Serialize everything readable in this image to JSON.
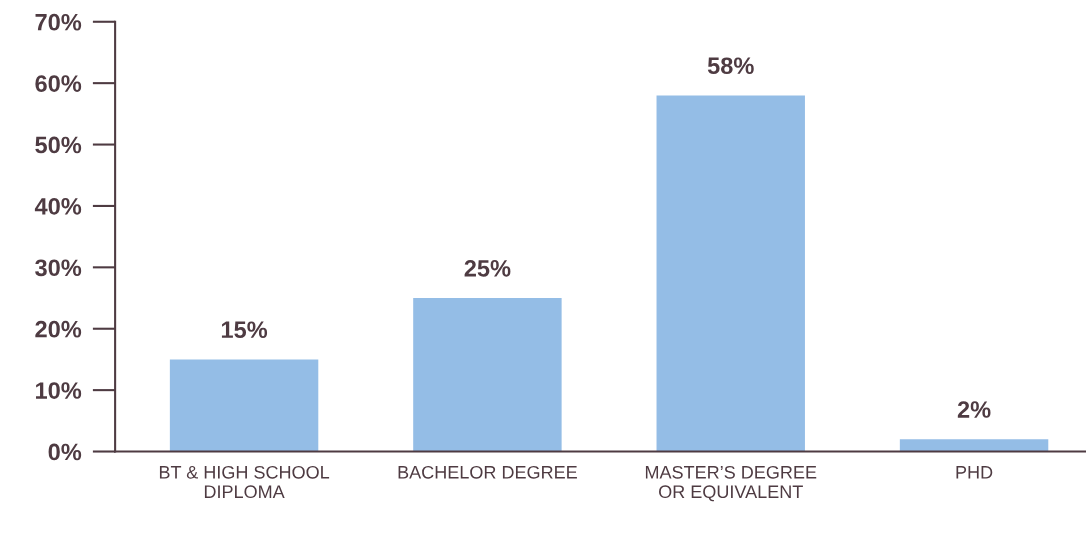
{
  "chart_data": {
    "type": "bar",
    "categories": [
      "BT & HIGH SCHOOL\nDIPLOMA",
      "BACHELOR DEGREE",
      "MASTER’S DEGREE\nOR EQUIVALENT",
      "PHD"
    ],
    "values": [
      15,
      25,
      58,
      2
    ],
    "value_labels": [
      "15%",
      "25%",
      "58%",
      "2%"
    ],
    "color": "#94bde6",
    "ylim": [
      0,
      70
    ],
    "yticks": [
      {
        "value": 0,
        "label": "0%"
      },
      {
        "value": 10,
        "label": "10%"
      },
      {
        "value": 20,
        "label": "20%"
      },
      {
        "value": 30,
        "label": "30%"
      },
      {
        "value": 40,
        "label": "40%"
      },
      {
        "value": 50,
        "label": "50%"
      },
      {
        "value": 60,
        "label": "60%"
      },
      {
        "value": 70,
        "label": "70%"
      }
    ],
    "grid": false,
    "legend": false
  }
}
